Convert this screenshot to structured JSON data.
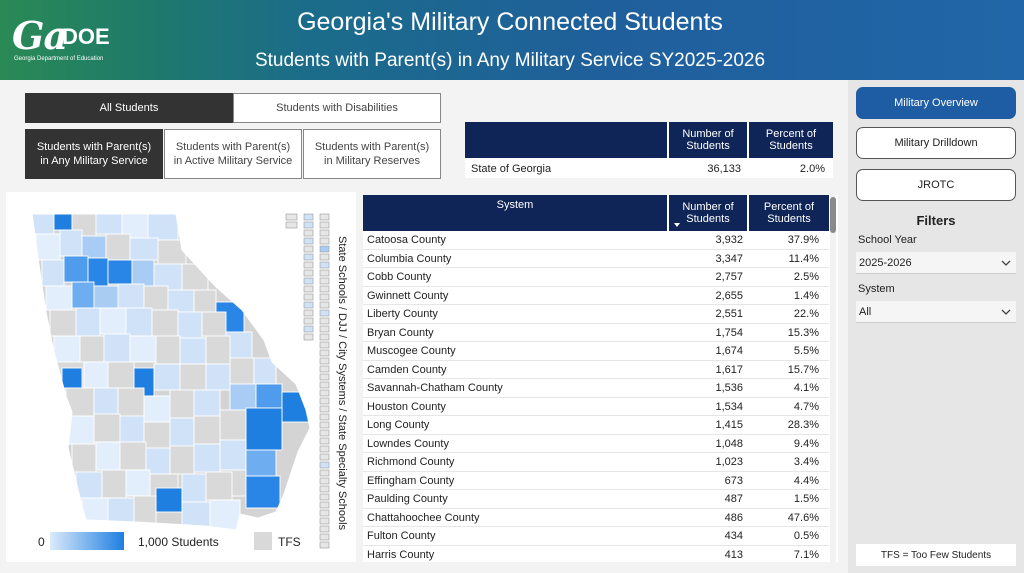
{
  "header": {
    "logo_main": "Ga",
    "logo_doe": "DOE",
    "logo_sub": "Georgia Department of Education",
    "title": "Georgia's Military Connected Students",
    "subtitle": "Students with Parent(s) in Any Military Service SY2025-2026"
  },
  "segments": {
    "all_students": "All Students",
    "swd": "Students with Disabilities",
    "any_military": "Students with Parent(s) in Any Military Service",
    "active_military": "Students with Parent(s) in Active Military Service",
    "reserves": "Students with Parent(s) in Military Reserves"
  },
  "state_table": {
    "col_number": "Number of Students",
    "col_percent": "Percent of Students",
    "row": {
      "name": "State of Georgia",
      "number": "36,133",
      "percent": "2.0%"
    }
  },
  "map": {
    "legend_min": "0",
    "legend_max": "1,000 Students",
    "legend_tfs": "TFS",
    "side_label": "State Schools / DJJ / City Systems / State Specialty Schools",
    "color_low": "#dbeafb",
    "color_high": "#1e7fe0",
    "color_tfs": "#d9d9d9"
  },
  "system_table": {
    "col_system": "System",
    "col_number": "Number of Students",
    "col_percent": "Percent of Students",
    "rows": [
      {
        "name": "Catoosa County",
        "number": "3,932",
        "percent": "37.9%"
      },
      {
        "name": "Columbia County",
        "number": "3,347",
        "percent": "11.4%"
      },
      {
        "name": "Cobb County",
        "number": "2,757",
        "percent": "2.5%"
      },
      {
        "name": "Gwinnett County",
        "number": "2,655",
        "percent": "1.4%"
      },
      {
        "name": "Liberty County",
        "number": "2,551",
        "percent": "22.%"
      },
      {
        "name": "Bryan County",
        "number": "1,754",
        "percent": "15.3%"
      },
      {
        "name": "Muscogee County",
        "number": "1,674",
        "percent": "5.5%"
      },
      {
        "name": "Camden County",
        "number": "1,617",
        "percent": "15.7%"
      },
      {
        "name": "Savannah-Chatham County",
        "number": "1,536",
        "percent": "4.1%"
      },
      {
        "name": "Houston County",
        "number": "1,534",
        "percent": "4.7%"
      },
      {
        "name": "Long County",
        "number": "1,415",
        "percent": "28.3%"
      },
      {
        "name": "Lowndes County",
        "number": "1,048",
        "percent": "9.4%"
      },
      {
        "name": "Richmond County",
        "number": "1,023",
        "percent": "3.4%"
      },
      {
        "name": "Effingham County",
        "number": "673",
        "percent": "4.4%"
      },
      {
        "name": "Paulding County",
        "number": "487",
        "percent": "1.5%"
      },
      {
        "name": "Chattahoochee County",
        "number": "486",
        "percent": "47.6%"
      },
      {
        "name": "Fulton County",
        "number": "434",
        "percent": "0.5%"
      },
      {
        "name": "Harris County",
        "number": "413",
        "percent": "7.1%"
      }
    ]
  },
  "sidebar": {
    "overview": "Military Overview",
    "drilldown": "Military Drilldown",
    "jrotc": "JROTC",
    "filters_title": "Filters",
    "school_year_label": "School Year",
    "school_year_value": "2025-2026",
    "system_label": "System",
    "system_value": "All",
    "tfs_note": "TFS = Too Few Students"
  },
  "colors": {
    "accent": "#1e5ca4",
    "table_header": "#0f2557"
  }
}
